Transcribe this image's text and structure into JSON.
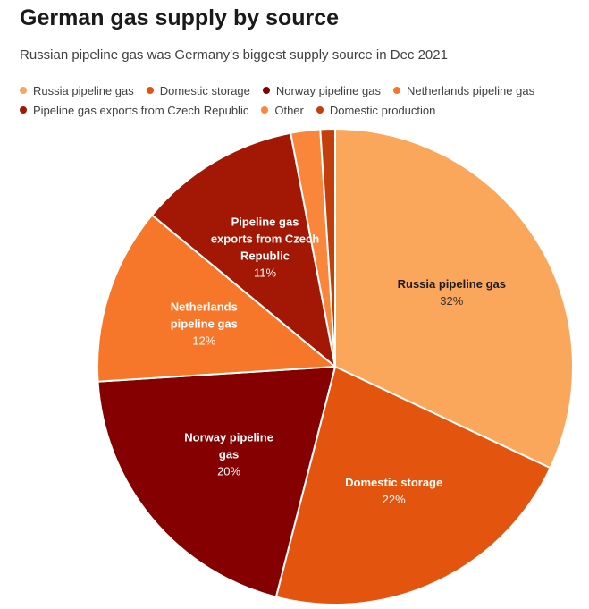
{
  "header": {
    "title": "German gas supply by source",
    "subtitle": "Russian pipeline gas was Germany's biggest supply source in Dec 2021"
  },
  "chart_data": {
    "type": "pie",
    "title": "German gas supply by source",
    "subtitle": "Russian pipeline gas was Germany's biggest supply source in Dec 2021",
    "legend_position": "top",
    "slices": [
      {
        "name": "Russia pipeline gas",
        "value": 32,
        "value_label": "32%",
        "color": "#FBA75B",
        "label_lines": [
          "Russia pipeline gas"
        ],
        "dark_text": true
      },
      {
        "name": "Domestic storage",
        "value": 22,
        "value_label": "22%",
        "color": "#E3550F",
        "label_lines": [
          "Domestic storage"
        ],
        "dark_text": false
      },
      {
        "name": "Norway pipeline gas",
        "value": 20,
        "value_label": "20%",
        "color": "#850000",
        "label_lines": [
          "Norway pipeline",
          "gas"
        ],
        "dark_text": false
      },
      {
        "name": "Netherlands pipeline gas",
        "value": 12,
        "value_label": "12%",
        "color": "#F7772A",
        "label_lines": [
          "Netherlands",
          "pipeline gas"
        ],
        "dark_text": false
      },
      {
        "name": "Pipeline gas exports from Czech Republic",
        "value": 11,
        "value_label": "11%",
        "color": "#A21805",
        "label_lines": [
          "Pipeline gas",
          "exports from Czech",
          "Republic"
        ],
        "dark_text": false
      },
      {
        "name": "Other",
        "value": 2,
        "color": "#F9863A",
        "label_lines": [],
        "dark_text": false
      },
      {
        "name": "Domestic production",
        "value": 1,
        "color": "#C23E0C",
        "label_lines": [],
        "dark_text": false
      }
    ]
  }
}
